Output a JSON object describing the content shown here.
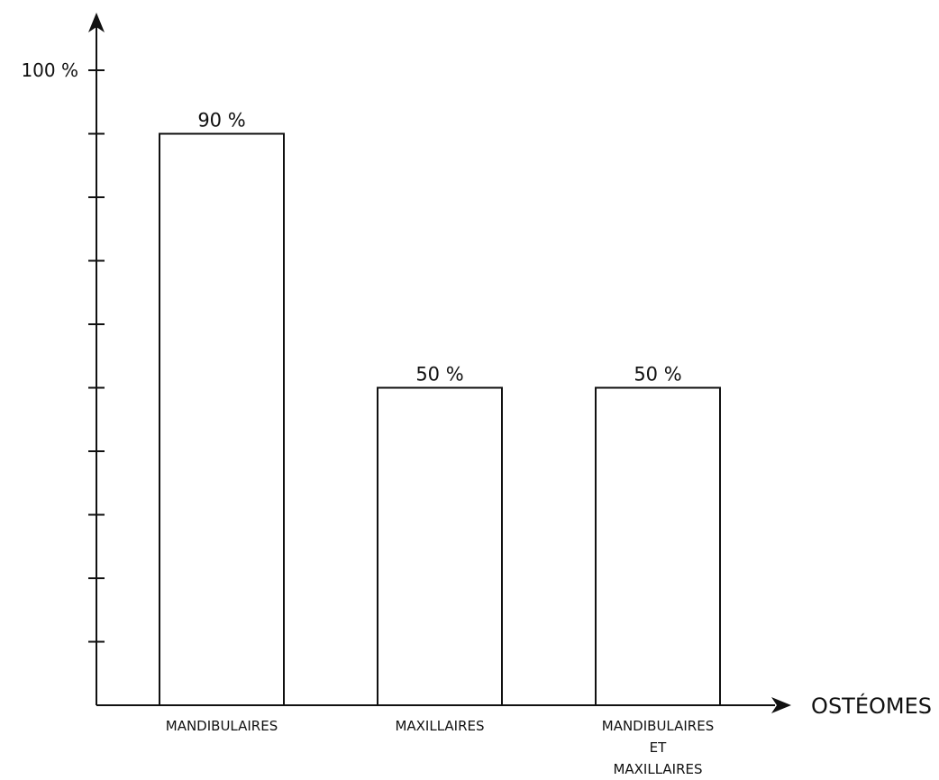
{
  "chart_data": {
    "type": "bar",
    "categories": [
      [
        "MANDIBULAIRES"
      ],
      [
        "MAXILLAIRES"
      ],
      [
        "MANDIBULAIRES",
        "ET",
        "MAXILLAIRES"
      ]
    ],
    "values": [
      90,
      50,
      50
    ],
    "data_labels": [
      "90 %",
      "50 %",
      "50 %"
    ],
    "xlabel": "OSTÉOMES",
    "ylabel": "",
    "ylim": [
      0,
      100
    ],
    "y_tick_step": 10,
    "y_tick_labels": [
      {
        "value": 100,
        "label": "100 %"
      }
    ],
    "grid": false,
    "bar_fill": "#ffffff",
    "bar_stroke": "#111111"
  }
}
